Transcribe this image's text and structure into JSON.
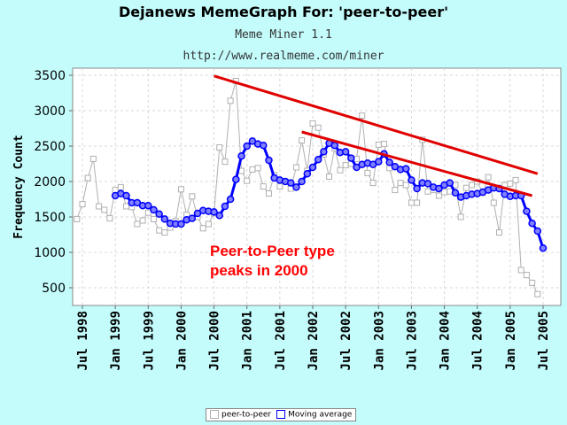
{
  "title": "Dejanews MemeGraph For: 'peer-to-peer'",
  "subtitle1": "Meme Miner 1.1",
  "subtitle2": "http://www.realmeme.com/miner",
  "colors": {
    "background": "#c4fcfc",
    "raw_series": "#b0b0b0",
    "moving_average": "#0000ff",
    "trend_lines": "#e00000",
    "annotation": "#ff0000"
  },
  "chart_data": {
    "type": "line",
    "ylabel": "Frequency Count",
    "ylim": [
      250,
      3550
    ],
    "yticks": [
      500,
      1000,
      1500,
      2000,
      2500,
      3000,
      3500
    ],
    "x_tick_labels": [
      "Jul 1998",
      "Jan 1999",
      "Jul 1999",
      "Jan 2000",
      "Jul 2000",
      "Jan 2001",
      "Jul 2001",
      "Jan 2002",
      "Jul 2002",
      "Jan 2003",
      "Jul 2003",
      "Jan 2004",
      "Jul 2004",
      "Jan 2005",
      "Jul 2005"
    ],
    "grid": true,
    "legend": {
      "position": "bottom-center",
      "entries": [
        "peer-to-peer",
        "Moving average"
      ]
    },
    "x_start": "1998-06",
    "series": [
      {
        "name": "peer-to-peer",
        "values": [
          1470,
          1680,
          2050,
          2320,
          1650,
          1600,
          1480,
          1880,
          1920,
          1650,
          1640,
          1400,
          1450,
          1560,
          1470,
          1310,
          1280,
          1350,
          1440,
          1890,
          1530,
          1790,
          1500,
          1340,
          1400,
          1550,
          2480,
          2280,
          3140,
          3420,
          2150,
          2010,
          2170,
          2190,
          1930,
          1830,
          2090,
          1930,
          2000,
          1900,
          2200,
          2580,
          2150,
          2820,
          2760,
          2380,
          2070,
          2470,
          2160,
          2230,
          2250,
          2320,
          2930,
          2120,
          1980,
          2520,
          2530,
          2190,
          1880,
          1980,
          1950,
          1700,
          1700,
          2590,
          1860,
          1880,
          1800,
          1850,
          1860,
          1950,
          1500,
          1910,
          1950,
          2000,
          1840,
          2060,
          1700,
          1280,
          1950,
          1970,
          2020,
          750,
          680,
          570,
          410
        ],
        "color": "#b0b0b0"
      },
      {
        "name": "Moving average",
        "start": "1999-01",
        "values": [
          1800,
          1830,
          1800,
          1700,
          1700,
          1660,
          1660,
          1600,
          1540,
          1470,
          1410,
          1400,
          1400,
          1460,
          1480,
          1550,
          1590,
          1580,
          1570,
          1520,
          1650,
          1750,
          2030,
          2360,
          2500,
          2570,
          2530,
          2510,
          2300,
          2050,
          2020,
          2000,
          1980,
          1920,
          2000,
          2110,
          2200,
          2310,
          2420,
          2540,
          2510,
          2410,
          2420,
          2330,
          2200,
          2240,
          2260,
          2240,
          2280,
          2390,
          2270,
          2210,
          2170,
          2180,
          2020,
          1900,
          1980,
          1970,
          1920,
          1900,
          1950,
          1980,
          1840,
          1780,
          1800,
          1820,
          1830,
          1850,
          1880,
          1910,
          1900,
          1820,
          1790,
          1800,
          1800,
          1580,
          1410,
          1300,
          1060
        ],
        "color": "#0000ff"
      }
    ],
    "trend_lines": [
      {
        "from": [
          "2000-07",
          3490
        ],
        "to": [
          "2005-06",
          2110
        ]
      },
      {
        "from": [
          "2001-11",
          2700
        ],
        "to": [
          "2005-05",
          1800
        ]
      }
    ],
    "annotation": [
      "Peer-to-Peer type",
      "peaks in 2000"
    ]
  }
}
